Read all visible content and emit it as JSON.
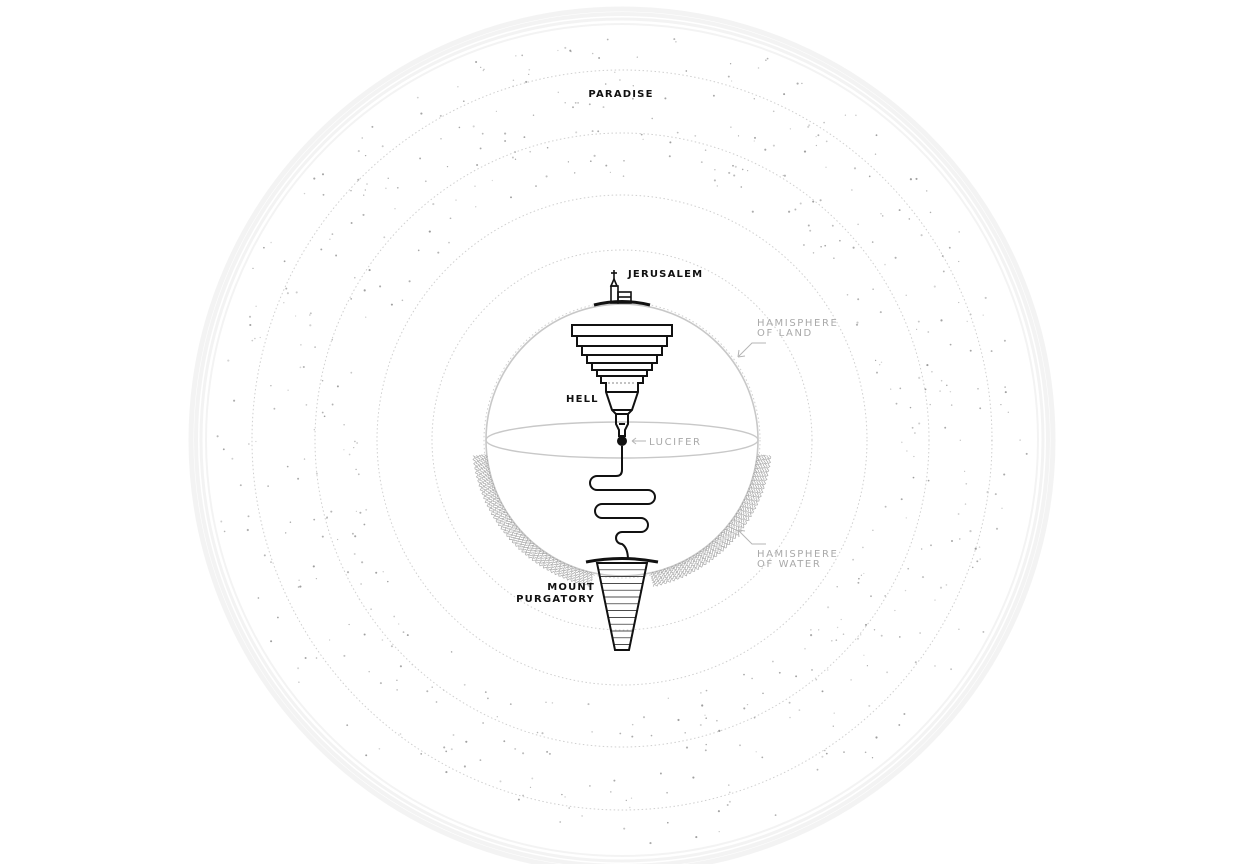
{
  "labels": {
    "paradise": "PARADISE",
    "jerusalem": "JERUSALEM",
    "hell": "HELL",
    "lucifer": "LUCIFER",
    "hemisphere_land_line1": "HAMISPHERE",
    "hemisphere_land_line2": "OF LAND",
    "hemisphere_water_line1": "HAMISPHERE",
    "hemisphere_water_line2": "OF WATER",
    "mount_line1": "MOUNT",
    "mount_line2": "PURGATORY"
  },
  "colors": {
    "ink": "#111111",
    "label_grey": "#a9a9a9",
    "sphere_outline": "#c8c8c8",
    "orbit_dots": "#cfcfcf",
    "halo": "#f2f2f2",
    "stars": "#8a8a8a"
  },
  "icons": [
    "church-icon",
    "lucifer-point-icon"
  ]
}
